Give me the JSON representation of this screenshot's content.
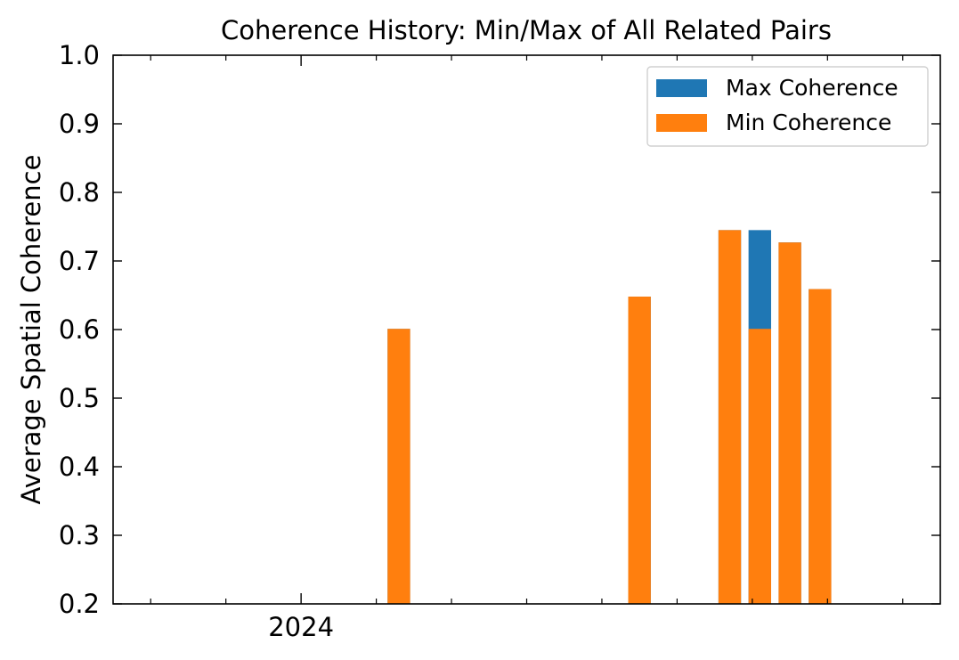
{
  "chart_data": {
    "type": "bar",
    "title": "Coherence History: Min/Max of All Related Pairs",
    "xlabel": "",
    "ylabel": "Average Spatial Coherence",
    "x_tick_labels": [
      {
        "text": "2024",
        "x": 0
      }
    ],
    "xlim": [
      -2.5,
      8.5
    ],
    "ylim": [
      0.2,
      1.0
    ],
    "y_ticks": [
      "0.2",
      "0.3",
      "0.4",
      "0.5",
      "0.6",
      "0.7",
      "0.8",
      "0.9",
      "1.0"
    ],
    "grid": false,
    "legend_position": "top-right",
    "series": [
      {
        "name": "Max Coherence",
        "color": "#1f77b4",
        "bars": [
          {
            "x": 1.3,
            "value": 0.601
          },
          {
            "x": 4.5,
            "value": 0.648
          },
          {
            "x": 5.7,
            "value": 0.745
          },
          {
            "x": 6.1,
            "value": 0.745
          },
          {
            "x": 6.5,
            "value": 0.727
          },
          {
            "x": 6.9,
            "value": 0.659
          }
        ]
      },
      {
        "name": "Min Coherence",
        "color": "#ff7f0e",
        "bars": [
          {
            "x": 1.3,
            "value": 0.601
          },
          {
            "x": 4.5,
            "value": 0.648
          },
          {
            "x": 5.7,
            "value": 0.745
          },
          {
            "x": 6.1,
            "value": 0.601
          },
          {
            "x": 6.5,
            "value": 0.727
          },
          {
            "x": 6.9,
            "value": 0.659
          }
        ]
      }
    ]
  }
}
